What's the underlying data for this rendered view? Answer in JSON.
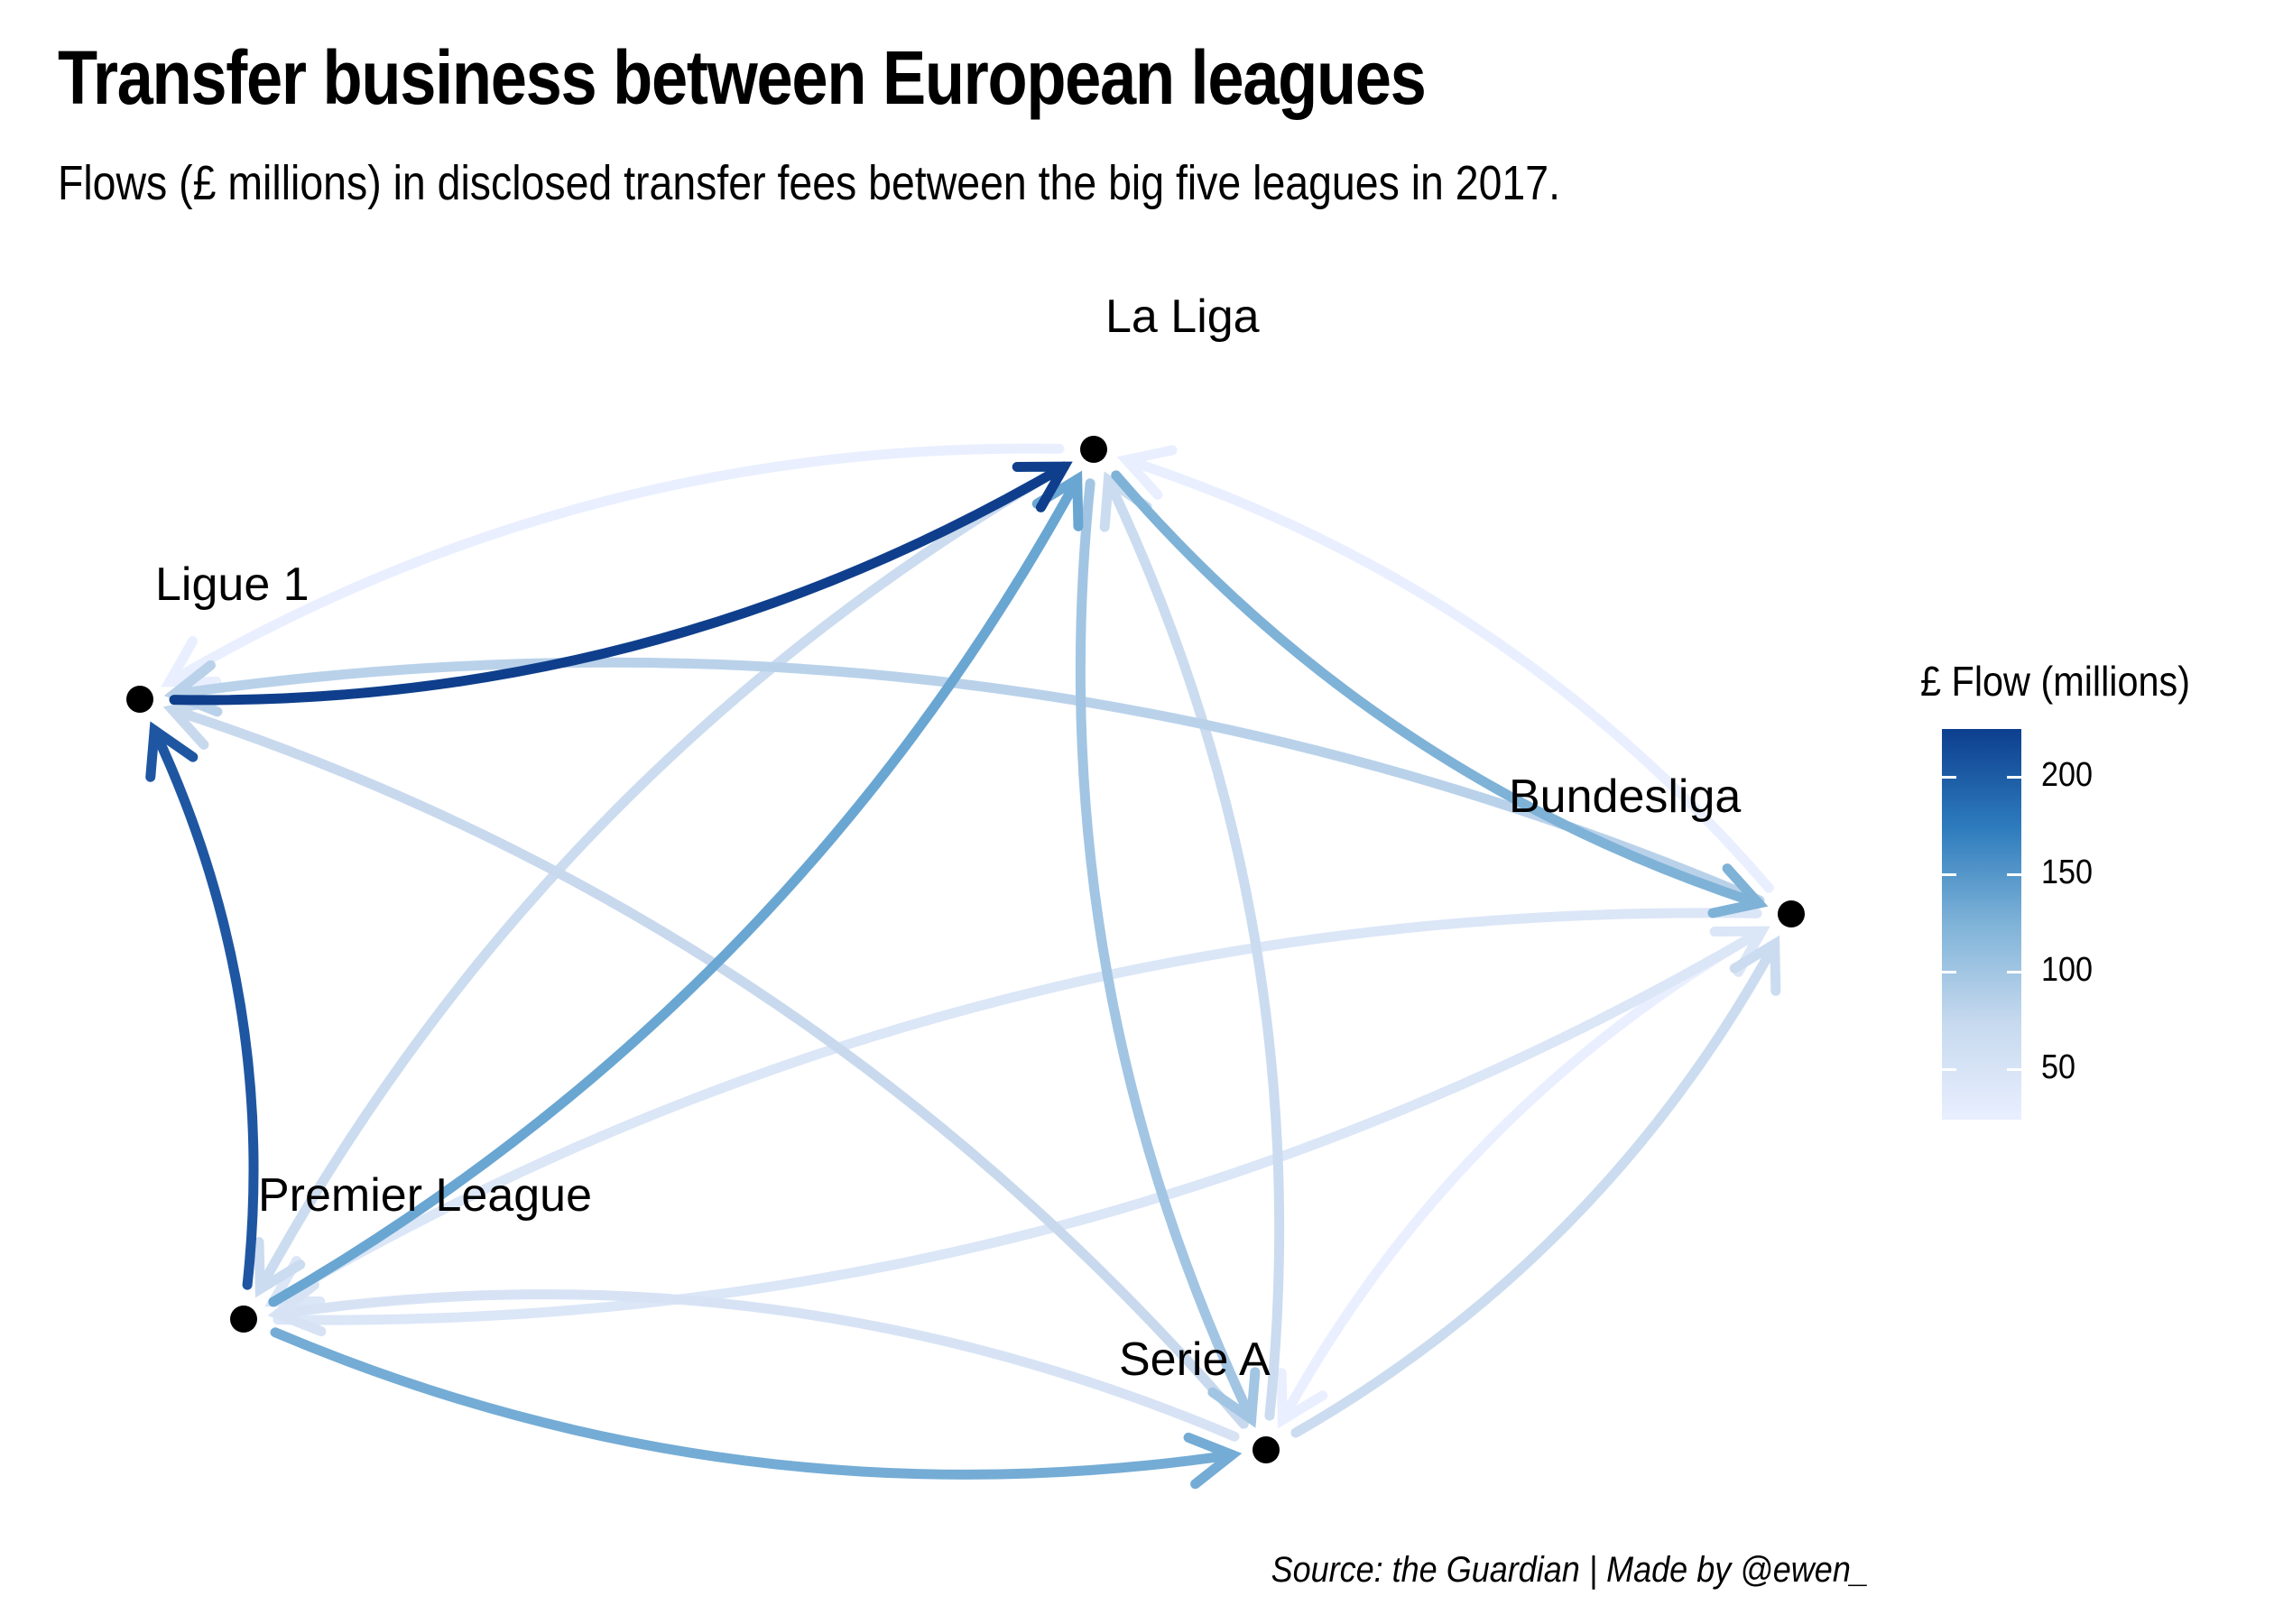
{
  "title": "Transfer business between European leagues",
  "subtitle": "Flows (£ millions) in disclosed transfer fees between the big five leagues in 2017.",
  "caption": "Source: the Guardian   |   Made by @ewen_",
  "legend": {
    "title": "£ Flow (millions)",
    "ticks": [
      "200",
      "150",
      "100",
      "50"
    ],
    "colors": {
      "high": "#0d3f8f",
      "mid": "#6fa8d4",
      "low": "#e9efff"
    }
  },
  "nodes": [
    {
      "id": "laliga",
      "label": "La Liga"
    },
    {
      "id": "ligue1",
      "label": "Ligue 1"
    },
    {
      "id": "bundesliga",
      "label": "Bundesliga"
    },
    {
      "id": "premier",
      "label": "Premier League"
    },
    {
      "id": "seriea",
      "label": "Serie A"
    }
  ],
  "edges": [
    {
      "from": "ligue1",
      "to": "laliga",
      "value": 220,
      "color": "#0f3f8c"
    },
    {
      "from": "laliga",
      "to": "ligue1",
      "value": 20,
      "color": "#e9efff"
    },
    {
      "from": "premier",
      "to": "ligue1",
      "value": 190,
      "color": "#1f56a2"
    },
    {
      "from": "premier",
      "to": "laliga",
      "value": 135,
      "color": "#6aa6d2"
    },
    {
      "from": "laliga",
      "to": "premier",
      "value": 45,
      "color": "#cbdcf0"
    },
    {
      "from": "laliga",
      "to": "bundesliga",
      "value": 110,
      "color": "#7fb2d7"
    },
    {
      "from": "bundesliga",
      "to": "laliga",
      "value": 20,
      "color": "#e9efff"
    },
    {
      "from": "bundesliga",
      "to": "ligue1",
      "value": 70,
      "color": "#b9d2ea"
    },
    {
      "from": "seriea",
      "to": "ligue1",
      "value": 50,
      "color": "#c8d9ee"
    },
    {
      "from": "laliga",
      "to": "seriea",
      "value": 100,
      "color": "#a2c5e3"
    },
    {
      "from": "seriea",
      "to": "laliga",
      "value": 45,
      "color": "#cbdcf0"
    },
    {
      "from": "premier",
      "to": "seriea",
      "value": 125,
      "color": "#74acd5"
    },
    {
      "from": "seriea",
      "to": "premier",
      "value": 35,
      "color": "#d7e3f5"
    },
    {
      "from": "bundesliga",
      "to": "premier",
      "value": 30,
      "color": "#dbe6f7"
    },
    {
      "from": "premier",
      "to": "bundesliga",
      "value": 30,
      "color": "#dbe6f7"
    },
    {
      "from": "seriea",
      "to": "bundesliga",
      "value": 45,
      "color": "#cbdcf0"
    },
    {
      "from": "bundesliga",
      "to": "seriea",
      "value": 20,
      "color": "#e9efff"
    }
  ]
}
